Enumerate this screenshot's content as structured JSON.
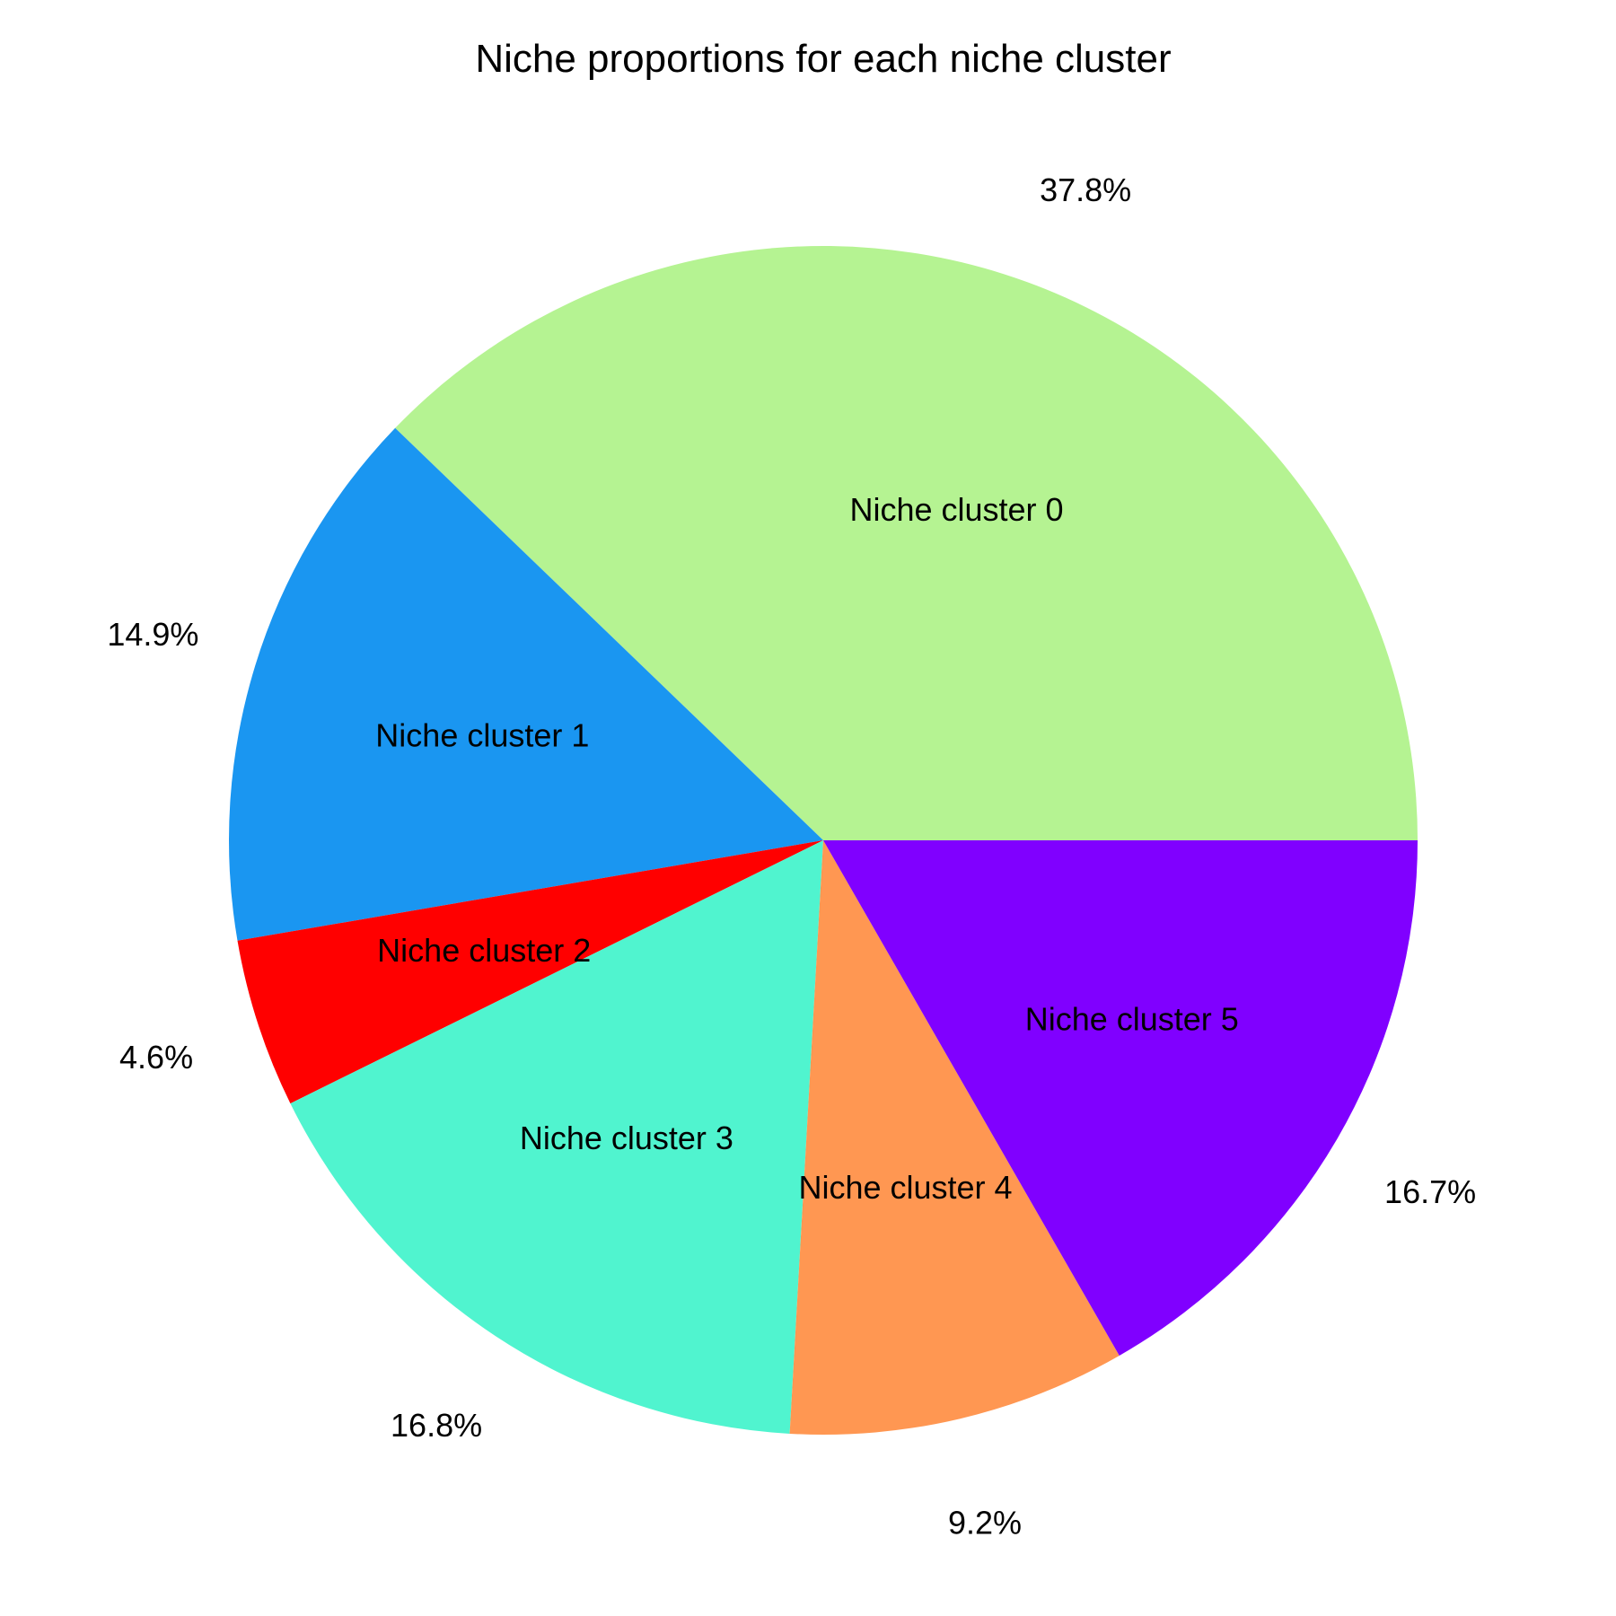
{
  "chart_data": {
    "type": "pie",
    "title": "Niche proportions for each niche cluster",
    "start_angle": "0° (3 o'clock), counter-clockwise",
    "slices": [
      {
        "label": "Niche cluster 0",
        "value": 37.8,
        "pct_label": "37.8%",
        "color": "#b5f392"
      },
      {
        "label": "Niche cluster 1",
        "value": 14.9,
        "pct_label": "14.9%",
        "color": "#1a96f1"
      },
      {
        "label": "Niche cluster 2",
        "value": 4.6,
        "pct_label": "4.6%",
        "color": "#ff0000"
      },
      {
        "label": "Niche cluster 3",
        "value": 16.8,
        "pct_label": "16.8%",
        "color": "#50f4cf"
      },
      {
        "label": "Niche cluster 4",
        "value": 9.2,
        "pct_label": "9.2%",
        "color": "#ff9752"
      },
      {
        "label": "Niche cluster 5",
        "value": 16.7,
        "pct_label": "16.7%",
        "color": "#8000ff"
      }
    ]
  }
}
